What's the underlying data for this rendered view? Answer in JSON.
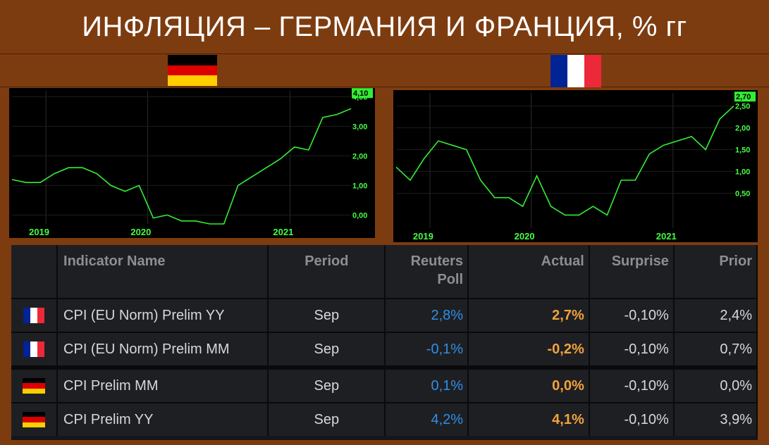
{
  "title": "ИНФЛЯЦИЯ – ГЕРМАНИЯ И ФРАНЦИЯ, % гг",
  "colors": {
    "background": "#7d3c10",
    "line": "#33ee33",
    "axis_label": "#44ff44",
    "poll": "#2f8fe6",
    "actual": "#f2a33a"
  },
  "chart_data": [
    {
      "type": "line",
      "name": "germany",
      "xlabels": [
        "2019",
        "2020",
        "2021"
      ],
      "yticks": [
        "0,00",
        "1,00",
        "2,00",
        "3,00",
        "4,00"
      ],
      "last_value_label": "4,10",
      "ylim": [
        -0.3,
        4.2
      ],
      "x": [
        0,
        1,
        2,
        3,
        4,
        5,
        6,
        7,
        8,
        9,
        10,
        11,
        12,
        13,
        14,
        15,
        16,
        17,
        18,
        19,
        20,
        21,
        22,
        23,
        24,
        25,
        26,
        27,
        28,
        29,
        30,
        31,
        32
      ],
      "values": [
        1.2,
        1.1,
        1.1,
        1.4,
        1.6,
        1.6,
        1.4,
        1.0,
        0.8,
        1.0,
        -0.1,
        0.0,
        -0.2,
        -0.2,
        -0.3,
        -0.3,
        1.0,
        1.3,
        1.6,
        1.9,
        2.3,
        2.2,
        3.3,
        3.4,
        3.6,
        3.8,
        3.9,
        3.9,
        4.0,
        4.0,
        4.1,
        4.1,
        4.1
      ],
      "grid": true
    },
    {
      "type": "line",
      "name": "france",
      "xlabels": [
        "2019",
        "2020",
        "2021"
      ],
      "yticks": [
        "0,50",
        "1,00",
        "1,50",
        "2,00",
        "2,50"
      ],
      "last_value_label": "2,70",
      "ylim": [
        -0.3,
        2.8
      ],
      "x": [
        0,
        1,
        2,
        3,
        4,
        5,
        6,
        7,
        8,
        9,
        10,
        11,
        12,
        13,
        14,
        15,
        16,
        17,
        18,
        19,
        20,
        21,
        22,
        23,
        24,
        25,
        26,
        27,
        28,
        29,
        30,
        31,
        32
      ],
      "values": [
        1.1,
        0.8,
        1.3,
        1.7,
        1.6,
        1.5,
        0.8,
        0.4,
        0.4,
        0.2,
        0.9,
        0.2,
        0.0,
        0.0,
        0.2,
        0.0,
        0.8,
        0.8,
        1.4,
        1.6,
        1.7,
        1.8,
        1.5,
        2.2,
        2.5,
        2.7,
        2.7,
        2.7,
        2.7,
        2.7,
        2.7,
        2.7,
        2.7
      ],
      "grid": true
    }
  ],
  "table": {
    "headers": {
      "name": "Indicator Name",
      "period": "Period",
      "poll": "Reuters Poll",
      "actual": "Actual",
      "surprise": "Surprise",
      "prior": "Prior"
    },
    "rows": [
      {
        "country": "fr",
        "name": "CPI (EU Norm) Prelim YY",
        "period": "Sep",
        "poll": "2,8%",
        "actual": "2,7%",
        "surprise": "-0,10%",
        "prior": "2,4%"
      },
      {
        "country": "fr",
        "name": "CPI (EU Norm) Prelim MM",
        "period": "Sep",
        "poll": "-0,1%",
        "actual": "-0,2%",
        "surprise": "-0,10%",
        "prior": "0,7%"
      },
      {
        "country": "de",
        "name": "CPI Prelim MM",
        "period": "Sep",
        "poll": "0,1%",
        "actual": "0,0%",
        "surprise": "-0,10%",
        "prior": "0,0%"
      },
      {
        "country": "de",
        "name": "CPI Prelim YY",
        "period": "Sep",
        "poll": "4,2%",
        "actual": "4,1%",
        "surprise": "-0,10%",
        "prior": "3,9%"
      }
    ]
  }
}
